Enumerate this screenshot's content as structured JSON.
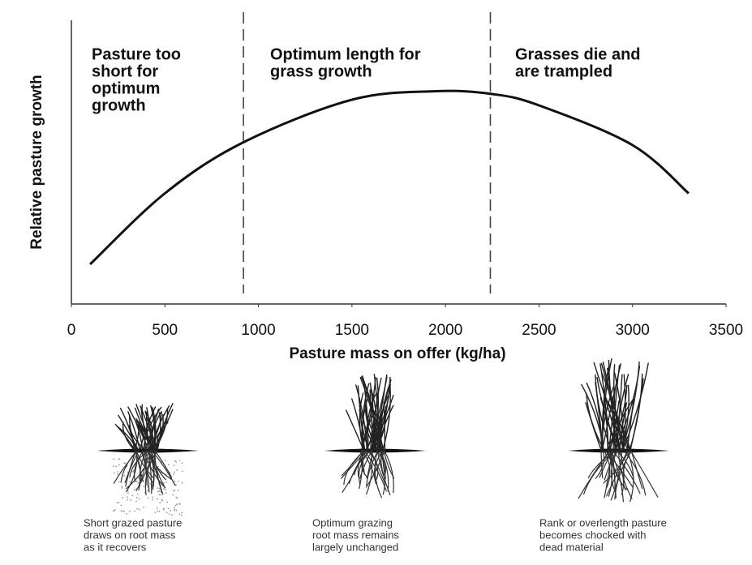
{
  "chart_data": {
    "type": "line",
    "x_label": "Pasture mass on offer (kg/ha)",
    "y_label": "Relative pasture growth",
    "xlim": [
      0,
      3500
    ],
    "xticks": [
      0,
      500,
      1000,
      1500,
      2000,
      2500,
      3000,
      3500
    ],
    "ylim": [
      0,
      1
    ],
    "x": [
      100,
      500,
      920,
      1500,
      1950,
      2250,
      2500,
      3000,
      3300
    ],
    "values": [
      0.14,
      0.39,
      0.57,
      0.72,
      0.75,
      0.74,
      0.7,
      0.56,
      0.39
    ],
    "color": "#111111",
    "dividers": [
      920,
      2240
    ],
    "regions": [
      {
        "lines": [
          "Pasture too",
          "short for",
          "optimum",
          "growth"
        ]
      },
      {
        "lines": [
          "Optimum length for",
          "grass growth"
        ]
      },
      {
        "lines": [
          "Grasses die and",
          "are trampled"
        ]
      }
    ],
    "illustrations": [
      {
        "caption": [
          "Short grazed pasture",
          "draws on root mass",
          "as it recovers"
        ]
      },
      {
        "caption": [
          "Optimum grazing",
          "root mass remains",
          "largely unchanged"
        ]
      },
      {
        "caption": [
          "Rank or overlength pasture",
          "becomes chocked with",
          "dead material"
        ]
      }
    ]
  }
}
